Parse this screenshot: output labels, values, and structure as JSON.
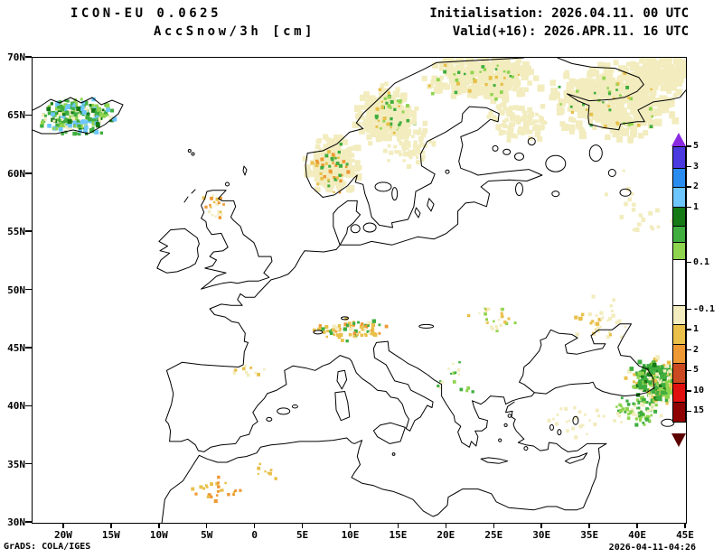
{
  "header": {
    "model": "ICON-EU 0.0625",
    "variable": "AccSnow/3h [cm]",
    "initialisation": "Initialisation: 2026.04.11. 00 UTC",
    "valid": "Valid(+16): 2026.APR.11. 16 UTC"
  },
  "footer": {
    "credit": "GrADS: COLA/IGES",
    "generated": "2026-04-11-04:26"
  },
  "chart_data": {
    "type": "heatmap",
    "projection": "lat-lon map of Europe (ICON-EU domain)",
    "lon_range": [
      -23.3,
      45.0
    ],
    "lat_range": [
      30,
      70
    ],
    "grid": false,
    "x_axis": {
      "ticks": [
        {
          "value": -20,
          "label": "20W"
        },
        {
          "value": -15,
          "label": "15W"
        },
        {
          "value": -10,
          "label": "10W"
        },
        {
          "value": -5,
          "label": "5W"
        },
        {
          "value": 0,
          "label": "0"
        },
        {
          "value": 5,
          "label": "5E"
        },
        {
          "value": 10,
          "label": "10E"
        },
        {
          "value": 15,
          "label": "15E"
        },
        {
          "value": 20,
          "label": "20E"
        },
        {
          "value": 25,
          "label": "25E"
        },
        {
          "value": 30,
          "label": "30E"
        },
        {
          "value": 35,
          "label": "35E"
        },
        {
          "value": 40,
          "label": "40E"
        },
        {
          "value": 45,
          "label": "45E"
        }
      ]
    },
    "y_axis": {
      "ticks": [
        {
          "value": 70,
          "label": "70N"
        },
        {
          "value": 65,
          "label": "65N"
        },
        {
          "value": 60,
          "label": "60N"
        },
        {
          "value": 55,
          "label": "55N"
        },
        {
          "value": 50,
          "label": "50N"
        },
        {
          "value": 45,
          "label": "45N"
        },
        {
          "value": 40,
          "label": "40N"
        },
        {
          "value": 35,
          "label": "35N"
        },
        {
          "value": 30,
          "label": "30N"
        }
      ]
    },
    "colorbar": {
      "orientation": "vertical",
      "position": "right-inside-frame",
      "top_arrow_color": "#8a2be2",
      "bottom_arrow_color": "#5c0000",
      "segments": [
        {
          "color": "#4a3ae0",
          "h": 1,
          "label": "5"
        },
        {
          "color": "#2b8cf0",
          "h": 1,
          "label": "3"
        },
        {
          "color": "#6ec6ff",
          "h": 1,
          "label": "2"
        },
        {
          "color": "#157a15",
          "h": 1,
          "label": "1"
        },
        {
          "color": "#3fae3f",
          "h": 0.85,
          "label": ""
        },
        {
          "color": "#8fd44e",
          "h": 0.85,
          "label": ""
        },
        {
          "color": "#ffffff",
          "h": 2.3,
          "label": "0.1"
        },
        {
          "color": "#f2ecbe",
          "h": 1,
          "label": "-0.1"
        },
        {
          "color": "#e8c04a",
          "h": 1,
          "label": "1"
        },
        {
          "color": "#ee9933",
          "h": 1,
          "label": "2"
        },
        {
          "color": "#cc4a22",
          "h": 1,
          "label": "5"
        },
        {
          "color": "#e01010",
          "h": 1,
          "label": "10"
        },
        {
          "color": "#8f0000",
          "h": 1,
          "label": "15"
        }
      ]
    },
    "snow_patches": [
      {
        "name": "iceland",
        "lon": -18.6,
        "lat": 64.9,
        "dlon": 4.0,
        "dlat": 1.6,
        "colors": [
          "#3fae3f",
          "#3fae3f",
          "#8fd44e",
          "#157a15",
          "#6ec6ff",
          "#f2ecbe"
        ],
        "n": 240,
        "cell": 4,
        "seed": 101
      },
      {
        "name": "norway-south-cream",
        "lon": 8.2,
        "lat": 60.9,
        "dlon": 2.8,
        "dlat": 2.6,
        "colors": [
          "#f2ecbe"
        ],
        "n": 230,
        "cell": 6,
        "seed": 102
      },
      {
        "name": "norway-south-specks",
        "lon": 8.0,
        "lat": 60.6,
        "dlon": 2.2,
        "dlat": 2.2,
        "colors": [
          "#e8c04a",
          "#ee9933",
          "#3fae3f"
        ],
        "n": 45,
        "cell": 3.2,
        "seed": 103
      },
      {
        "name": "norway-mid-cream",
        "lon": 13.5,
        "lat": 65.0,
        "dlon": 3.2,
        "dlat": 2.6,
        "colors": [
          "#f2ecbe"
        ],
        "n": 220,
        "cell": 6,
        "seed": 104
      },
      {
        "name": "norway-mid-specks",
        "lon": 14.0,
        "lat": 65.2,
        "dlon": 2.6,
        "dlat": 2.2,
        "colors": [
          "#e8c04a",
          "#8fd44e",
          "#3fae3f"
        ],
        "n": 40,
        "cell": 3.2,
        "seed": 105
      },
      {
        "name": "lapland-cream",
        "lon": 24.0,
        "lat": 68.3,
        "dlon": 6.0,
        "dlat": 2.0,
        "colors": [
          "#f2ecbe"
        ],
        "n": 260,
        "cell": 6.5,
        "seed": 106
      },
      {
        "name": "lapland-specks",
        "lon": 23.0,
        "lat": 68.0,
        "dlon": 5.0,
        "dlat": 1.6,
        "colors": [
          "#8fd44e",
          "#3fae3f",
          "#e8c04a"
        ],
        "n": 36,
        "cell": 3.2,
        "seed": 107
      },
      {
        "name": "kola-nw-russia-cream",
        "lon": 37.5,
        "lat": 66.3,
        "dlon": 6.5,
        "dlat": 3.4,
        "colors": [
          "#f2ecbe"
        ],
        "n": 380,
        "cell": 7,
        "seed": 108
      },
      {
        "name": "nw-russia-specks",
        "lon": 37.0,
        "lat": 66.0,
        "dlon": 6.0,
        "dlat": 3.0,
        "colors": [
          "#8fd44e",
          "#e8c04a",
          "#3fae3f"
        ],
        "n": 40,
        "cell": 3.2,
        "seed": 109
      },
      {
        "name": "russia-topright-cream",
        "lon": 42.0,
        "lat": 68.8,
        "dlon": 3.2,
        "dlat": 1.4,
        "colors": [
          "#f2ecbe"
        ],
        "n": 130,
        "cell": 7,
        "seed": 110
      },
      {
        "name": "sweden-mid-cream",
        "lon": 16.0,
        "lat": 62.6,
        "dlon": 2.6,
        "dlat": 2.0,
        "colors": [
          "#f2ecbe"
        ],
        "n": 80,
        "cell": 4.5,
        "seed": 111
      },
      {
        "name": "finland-cream",
        "lon": 27.5,
        "lat": 64.5,
        "dlon": 3.2,
        "dlat": 1.8,
        "colors": [
          "#f2ecbe"
        ],
        "n": 90,
        "cell": 5,
        "seed": 112
      },
      {
        "name": "scotland-specks",
        "lon": -4.3,
        "lat": 57.3,
        "dlon": 1.4,
        "dlat": 1.2,
        "colors": [
          "#e8c04a",
          "#f2ecbe",
          "#ee9933"
        ],
        "n": 20,
        "cell": 3,
        "seed": 113
      },
      {
        "name": "alps-specks",
        "lon": 10.0,
        "lat": 46.6,
        "dlon": 3.8,
        "dlat": 1.0,
        "colors": [
          "#e8c04a",
          "#ee9933",
          "#e8c04a",
          "#f2ecbe",
          "#3fae3f"
        ],
        "n": 85,
        "cell": 3.4,
        "seed": 114
      },
      {
        "name": "pyrenees-specks",
        "lon": -0.8,
        "lat": 43.0,
        "dlon": 2.0,
        "dlat": 0.5,
        "colors": [
          "#e8c04a",
          "#f2ecbe"
        ],
        "n": 12,
        "cell": 3,
        "seed": 115
      },
      {
        "name": "carpathians-specks",
        "lon": 24.5,
        "lat": 47.4,
        "dlon": 2.6,
        "dlat": 1.4,
        "colors": [
          "#f2ecbe",
          "#e8c04a",
          "#8fd44e"
        ],
        "n": 26,
        "cell": 3,
        "seed": 116
      },
      {
        "name": "balkans-specks",
        "lon": 21.0,
        "lat": 42.3,
        "dlon": 2.0,
        "dlat": 1.5,
        "colors": [
          "#3fae3f",
          "#f2ecbe",
          "#8fd44e"
        ],
        "n": 18,
        "cell": 3,
        "seed": 117
      },
      {
        "name": "azov-steppe-specks",
        "lon": 36.0,
        "lat": 47.3,
        "dlon": 3.6,
        "dlat": 2.0,
        "colors": [
          "#f2ecbe",
          "#e8c04a",
          "#f2ecbe"
        ],
        "n": 38,
        "cell": 3.4,
        "seed": 118
      },
      {
        "name": "caucasus-dense",
        "lon": 42.0,
        "lat": 42.2,
        "dlon": 2.9,
        "dlat": 1.9,
        "colors": [
          "#3fae3f",
          "#3fae3f",
          "#8fd44e",
          "#157a15",
          "#f2ecbe",
          "#e8c04a"
        ],
        "n": 300,
        "cell": 4,
        "seed": 119
      },
      {
        "name": "ne-turkey-specks",
        "lon": 40.0,
        "lat": 39.7,
        "dlon": 2.9,
        "dlat": 1.3,
        "colors": [
          "#3fae3f",
          "#8fd44e",
          "#f2ecbe"
        ],
        "n": 70,
        "cell": 3.4,
        "seed": 120
      },
      {
        "name": "central-turkey-cream",
        "lon": 33.5,
        "lat": 38.8,
        "dlon": 3.0,
        "dlat": 1.5,
        "colors": [
          "#f2ecbe"
        ],
        "n": 26,
        "cell": 3.4,
        "seed": 121
      },
      {
        "name": "atlas-specks",
        "lon": -4.2,
        "lat": 32.9,
        "dlon": 2.6,
        "dlat": 1.1,
        "colors": [
          "#e8c04a",
          "#ee9933"
        ],
        "n": 26,
        "cell": 3.2,
        "seed": 122
      },
      {
        "name": "algeria-specks",
        "lon": 1.2,
        "lat": 34.6,
        "dlon": 1.8,
        "dlat": 0.9,
        "colors": [
          "#e8c04a"
        ],
        "n": 8,
        "cell": 3,
        "seed": 123
      },
      {
        "name": "russia-mid-sparse",
        "lon": 40.0,
        "lat": 57.0,
        "dlon": 4.6,
        "dlat": 3.4,
        "colors": [
          "#f2ecbe"
        ],
        "n": 24,
        "cell": 4,
        "seed": 124
      }
    ]
  }
}
